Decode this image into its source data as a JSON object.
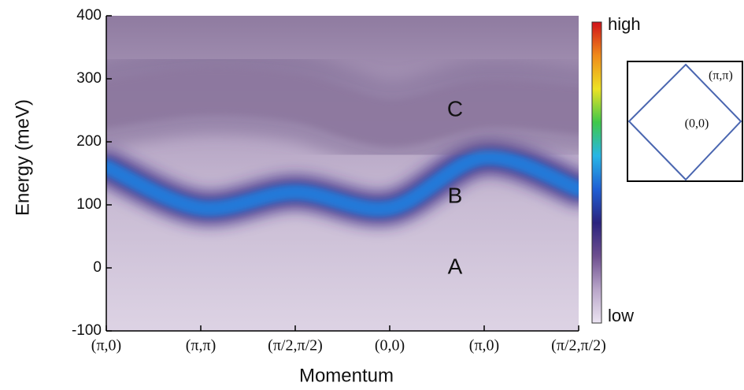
{
  "chart_data": {
    "type": "heatmap",
    "xlabel": "Momentum",
    "ylabel": "Energy (meV)",
    "categories": [
      "(π,0)",
      "(π,π)",
      "(π/2,π/2)",
      "(0,0)",
      "(π,0)",
      "(π/2,π/2)"
    ],
    "ylim": [
      -100,
      400
    ],
    "yticks": [
      -100,
      0,
      100,
      200,
      300,
      400
    ],
    "series": [
      {
        "name": "A",
        "color": "#3a2f9a",
        "values": [
          0,
          0,
          0,
          0,
          0,
          0
        ]
      },
      {
        "name": "B",
        "color": "#1f7fe0",
        "values": [
          160,
          95,
          120,
          95,
          175,
          125
        ]
      },
      {
        "name": "C",
        "color": "#8d789f",
        "values": [
          260,
          280,
          270,
          230,
          260,
          250
        ]
      }
    ],
    "annotation_color": "#f2e21c",
    "colorbar": {
      "high": "high",
      "low": "low",
      "colors": [
        "#ece4f2",
        "#b9a6c9",
        "#6e4f8f",
        "#2b237e",
        "#1f5fd4",
        "#28b6e6",
        "#3fc84a",
        "#ede224",
        "#f08a1a",
        "#d0121a"
      ]
    }
  },
  "inset": {
    "labels": [
      "(π,π)",
      "(0,0)"
    ]
  }
}
